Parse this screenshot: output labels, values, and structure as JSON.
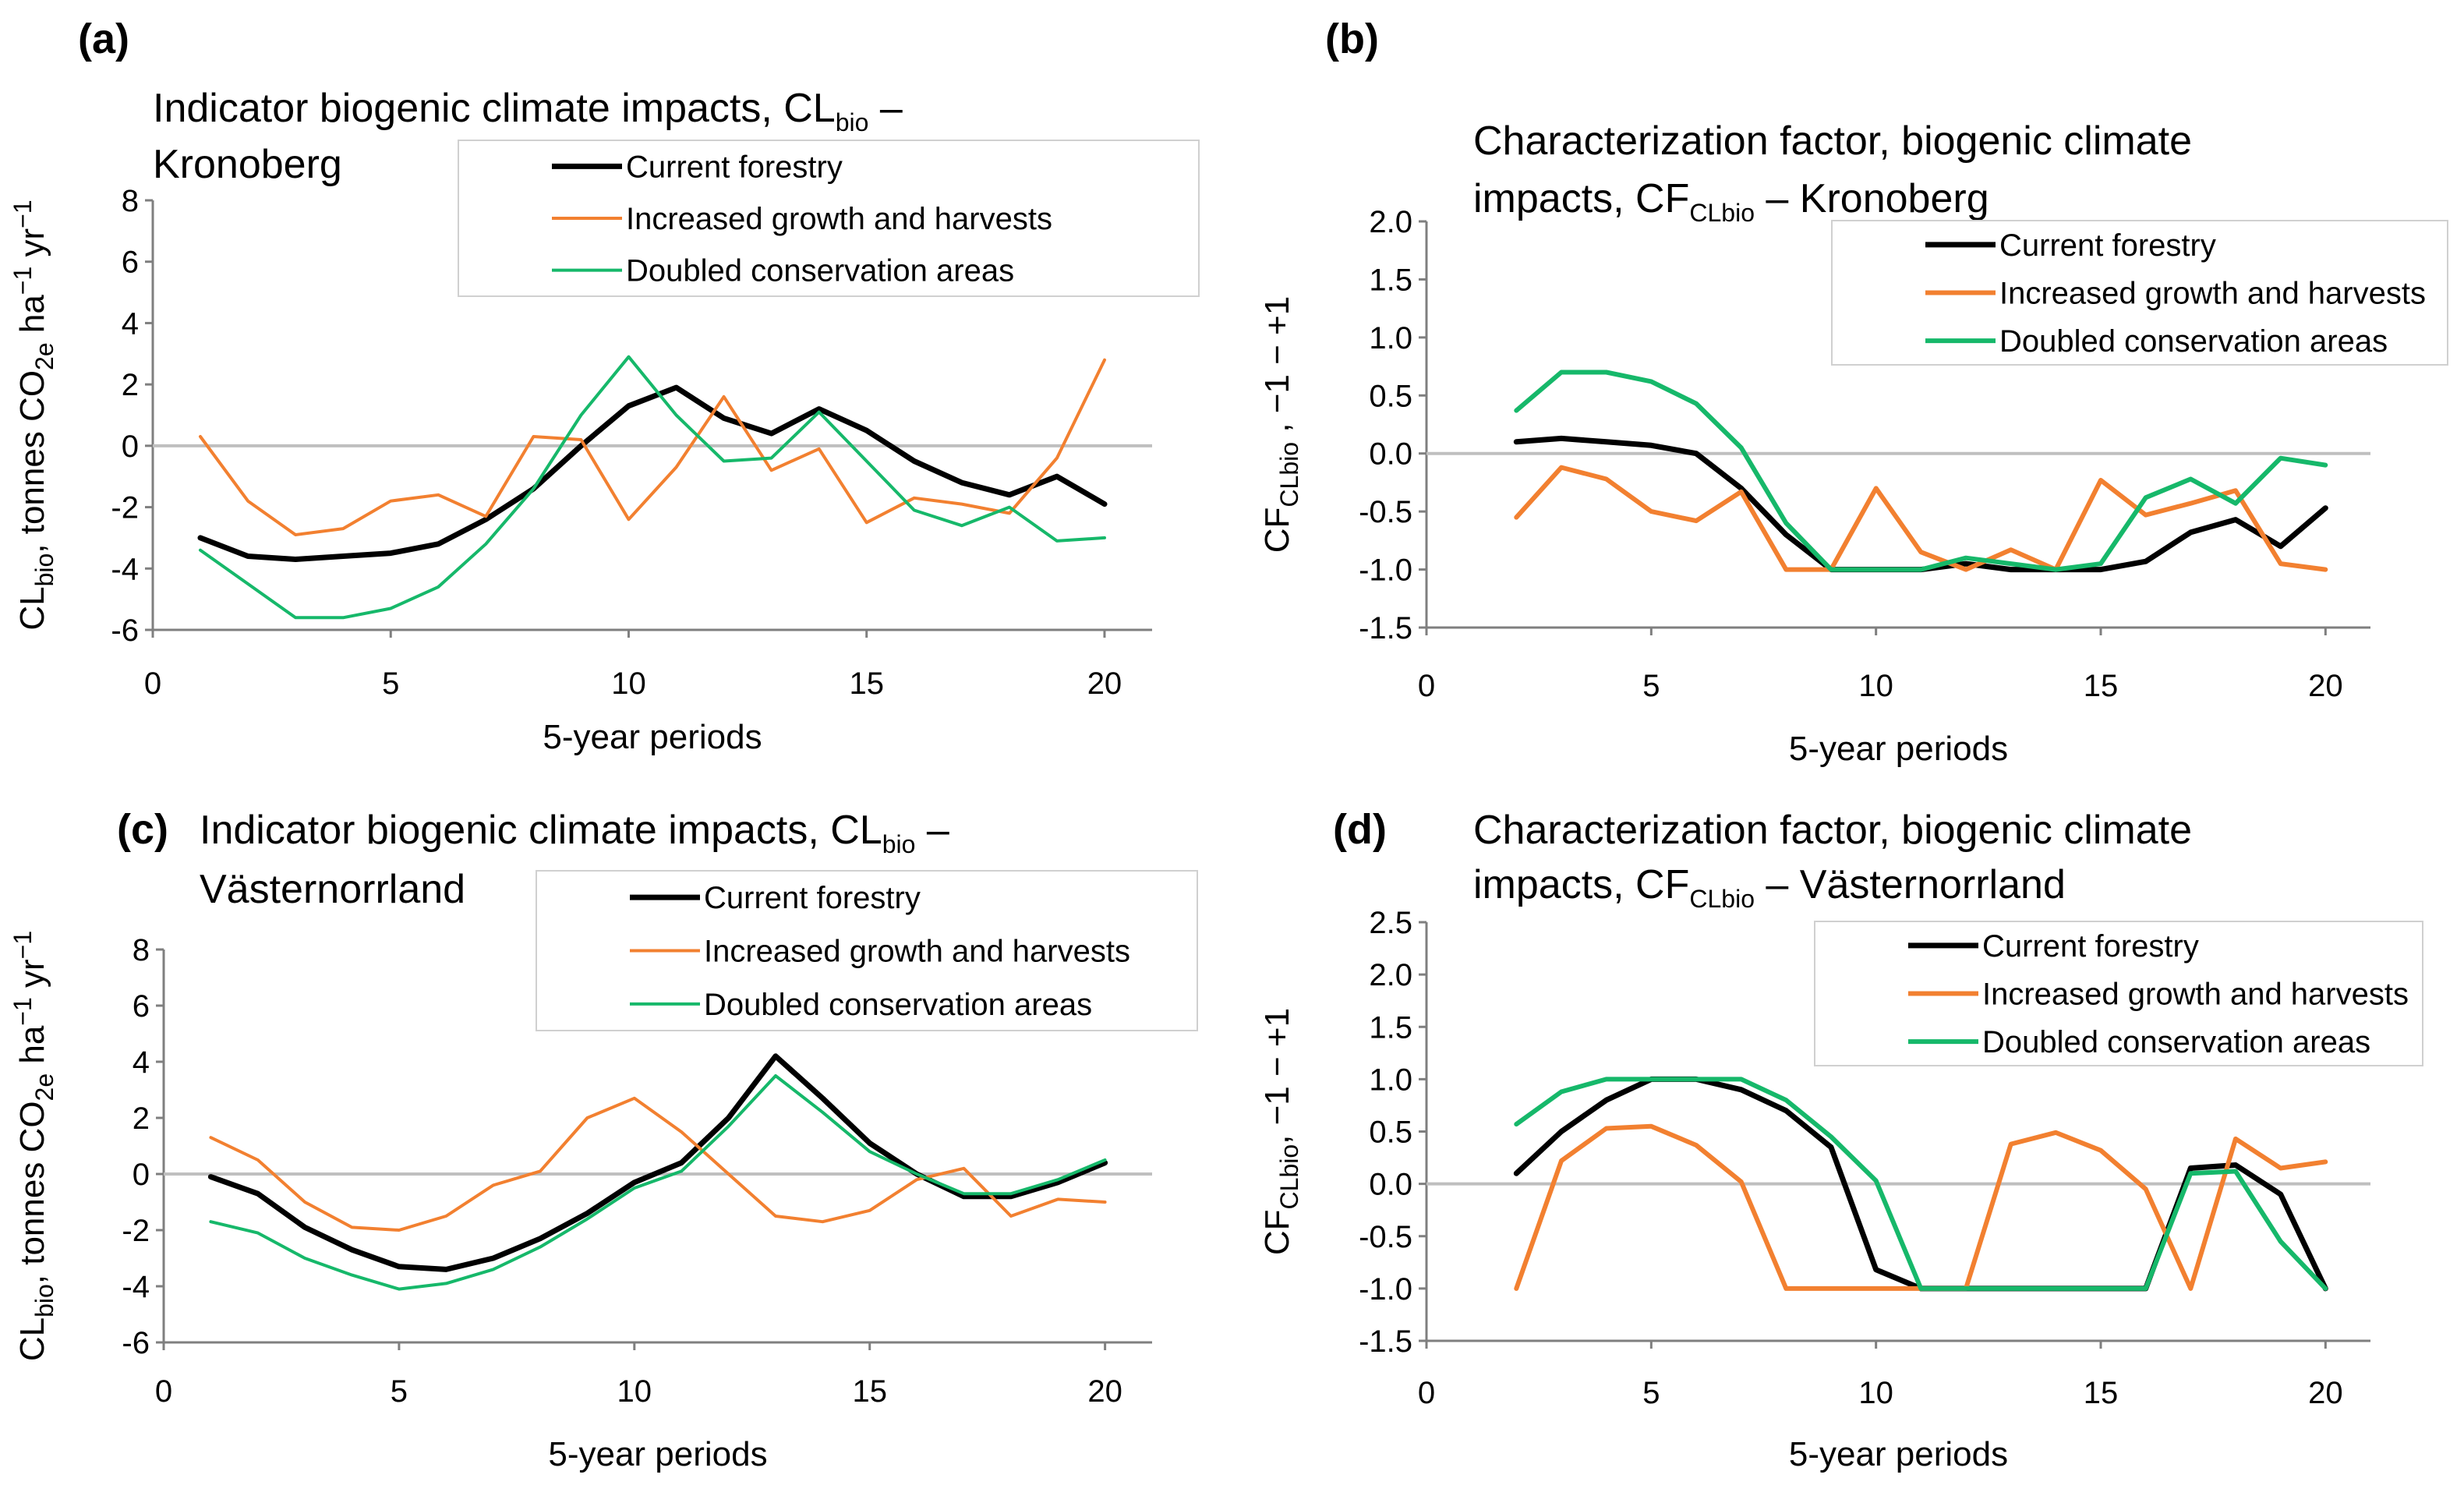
{
  "colors": {
    "current": "#000000",
    "increased": "#F28030",
    "doubled": "#16B86A",
    "zero_line": "#BFBFBF",
    "axis": "#7F7F7F",
    "legend_border": "#D0D0D0"
  },
  "panels": [
    {
      "id": "a",
      "label": "(a)",
      "title_line1": "Indicator biogenic climate impacts, CL",
      "title_line1_sub": "bio",
      "title_line1_end": " –",
      "title_line2": "Kronoberg",
      "ylabel_parts": [
        {
          "t": "CL"
        },
        {
          "t": "bio",
          "sub": true
        },
        {
          "t": ", tonnes CO"
        },
        {
          "t": "2e",
          "sub": true
        },
        {
          "t": " ha"
        },
        {
          "t": "−1",
          "sup": true
        },
        {
          "t": " yr"
        },
        {
          "t": "−1",
          "sup": true
        }
      ],
      "xlabel": "5-year periods",
      "xticks": [
        "0",
        "5",
        "10",
        "15",
        "20"
      ],
      "yticks": [
        "-6",
        "-4",
        "-2",
        "0",
        "2",
        "4",
        "6",
        "8"
      ],
      "legend": [
        "Current forestry",
        "Increased growth and harvests",
        "Doubled conservation areas"
      ]
    },
    {
      "id": "b",
      "label": "(b)",
      "title_line1": "Characterization factor, biogenic climate",
      "title_line2": "impacts, CF",
      "title_line2_sub": "CLbio",
      "title_line2_end": " – Kronoberg",
      "ylabel_parts": [
        {
          "t": "CF"
        },
        {
          "t": "CLbio",
          "sub": true
        },
        {
          "t": " ,  −1 − +1"
        }
      ],
      "xlabel": "5-year periods",
      "xticks": [
        "0",
        "5",
        "10",
        "15",
        "20"
      ],
      "yticks": [
        "-1.5",
        "-1.0",
        "-0.5",
        "0.0",
        "0.5",
        "1.0",
        "1.5",
        "2.0"
      ],
      "legend": [
        "Current forestry",
        "Increased growth and harvests",
        "Doubled conservation areas"
      ]
    },
    {
      "id": "c",
      "label": "(c)",
      "title_line1": "Indicator biogenic climate impacts, CL",
      "title_line1_sub": "bio",
      "title_line1_end": " –",
      "title_line2": "Västernorrland",
      "ylabel_parts": [
        {
          "t": "CL"
        },
        {
          "t": "bio",
          "sub": true
        },
        {
          "t": ", tonnes CO"
        },
        {
          "t": "2e",
          "sub": true
        },
        {
          "t": " ha"
        },
        {
          "t": "−1",
          "sup": true
        },
        {
          "t": " yr"
        },
        {
          "t": "−1",
          "sup": true
        }
      ],
      "xlabel": "5-year periods",
      "xticks": [
        "0",
        "5",
        "10",
        "15",
        "20"
      ],
      "yticks": [
        "-6",
        "-4",
        "-2",
        "0",
        "2",
        "4",
        "6",
        "8"
      ],
      "legend": [
        "Current forestry",
        "Increased growth and harvests",
        "Doubled conservation areas"
      ]
    },
    {
      "id": "d",
      "label": "(d)",
      "title_line1": "Characterization factor, biogenic climate",
      "title_line2": "impacts, CF",
      "title_line2_sub": "CLbio",
      "title_line2_end": " – Västernorrland",
      "ylabel_parts": [
        {
          "t": "CF"
        },
        {
          "t": "CLbio",
          "sub": true
        },
        {
          "t": ",  −1 − +1"
        }
      ],
      "xlabel": "5-year periods",
      "xticks": [
        "0",
        "5",
        "10",
        "15",
        "20"
      ],
      "yticks": [
        "-1.5",
        "-1.0",
        "-0.5",
        "0.0",
        "0.5",
        "1.0",
        "1.5",
        "2.0",
        "2.5"
      ],
      "legend": [
        "Current forestry",
        "Increased growth and harvests",
        "Doubled conservation areas"
      ]
    }
  ],
  "chart_data": [
    {
      "panel": "a",
      "type": "line",
      "title": "Indicator biogenic climate impacts, CLbio – Kronoberg",
      "xlabel": "5-year periods",
      "ylabel": "CLbio, tonnes CO2e ha−1 yr−1",
      "xlim": [
        0,
        21
      ],
      "ylim": [
        -6,
        8
      ],
      "grid": false,
      "legend_position": "top-right",
      "x": [
        1,
        2,
        3,
        4,
        5,
        6,
        7,
        8,
        9,
        10,
        11,
        12,
        13,
        14,
        15,
        16,
        17,
        18,
        19,
        20
      ],
      "series": [
        {
          "name": "Current forestry",
          "key": "current",
          "values": [
            -3.0,
            -3.6,
            -3.7,
            -3.6,
            -3.5,
            -3.2,
            -2.4,
            -1.4,
            0.0,
            1.3,
            1.9,
            0.9,
            0.4,
            1.2,
            0.5,
            -0.5,
            -1.2,
            -1.6,
            -1.0,
            -1.9
          ]
        },
        {
          "name": "Increased growth and harvests",
          "key": "increased",
          "values": [
            0.3,
            -1.8,
            -2.9,
            -2.7,
            -1.8,
            -1.6,
            -2.3,
            0.3,
            0.2,
            -2.4,
            -0.7,
            1.6,
            -0.8,
            -0.1,
            -2.5,
            -1.7,
            -1.9,
            -2.2,
            -0.4,
            2.8
          ]
        },
        {
          "name": "Doubled conservation areas",
          "key": "doubled",
          "values": [
            -3.4,
            -4.5,
            -5.6,
            -5.6,
            -5.3,
            -4.6,
            -3.2,
            -1.4,
            1.0,
            2.9,
            1.0,
            -0.5,
            -0.4,
            1.1,
            -0.5,
            -2.1,
            -2.6,
            -2.0,
            -3.1,
            -3.0
          ]
        }
      ]
    },
    {
      "panel": "b",
      "type": "line",
      "title": "Characterization factor, biogenic climate impacts, CFCLbio – Kronoberg",
      "xlabel": "5-year periods",
      "ylabel": "CFCLbio , −1 − +1",
      "xlim": [
        0,
        21
      ],
      "ylim": [
        -1.5,
        2.0
      ],
      "grid": false,
      "legend_position": "top-right",
      "x": [
        2,
        3,
        4,
        5,
        6,
        7,
        8,
        9,
        10,
        11,
        12,
        13,
        14,
        15,
        16,
        17,
        18,
        19,
        20
      ],
      "series": [
        {
          "name": "Current forestry",
          "key": "current",
          "values": [
            0.1,
            0.13,
            0.1,
            0.07,
            0.0,
            -0.3,
            -0.7,
            -1.0,
            -1.0,
            -1.0,
            -0.95,
            -1.0,
            -1.0,
            -1.0,
            -0.93,
            -0.68,
            -0.57,
            -0.8,
            -0.47
          ]
        },
        {
          "name": "Increased growth and harvests",
          "key": "increased",
          "values": [
            -0.55,
            -0.12,
            -0.22,
            -0.5,
            -0.58,
            -0.33,
            -1.0,
            -1.0,
            -0.3,
            -0.85,
            -1.0,
            -0.83,
            -1.0,
            -0.23,
            -0.53,
            -0.43,
            -0.32,
            -0.95,
            -1.0
          ]
        },
        {
          "name": "Doubled conservation areas",
          "key": "doubled",
          "values": [
            0.37,
            0.7,
            0.7,
            0.62,
            0.43,
            0.05,
            -0.6,
            -1.0,
            -1.0,
            -1.0,
            -0.9,
            -0.95,
            -1.0,
            -0.95,
            -0.38,
            -0.22,
            -0.43,
            -0.04,
            -0.1
          ]
        }
      ]
    },
    {
      "panel": "c",
      "type": "line",
      "title": "Indicator biogenic climate impacts, CLbio – Västernorrland",
      "xlabel": "5-year periods",
      "ylabel": "CLbio, tonnes CO2e ha−1 yr−1",
      "xlim": [
        0,
        21
      ],
      "ylim": [
        -6,
        8
      ],
      "grid": false,
      "legend_position": "top-right",
      "x": [
        1,
        2,
        3,
        4,
        5,
        6,
        7,
        8,
        9,
        10,
        11,
        12,
        13,
        14,
        15,
        16,
        17,
        18,
        19,
        20
      ],
      "series": [
        {
          "name": "Current forestry",
          "key": "current",
          "values": [
            -0.1,
            -0.7,
            -1.9,
            -2.7,
            -3.3,
            -3.4,
            -3.0,
            -2.3,
            -1.4,
            -0.3,
            0.4,
            2.0,
            4.2,
            2.7,
            1.1,
            0.0,
            -0.8,
            -0.8,
            -0.3,
            0.4
          ]
        },
        {
          "name": "Increased growth and harvests",
          "key": "increased",
          "values": [
            1.3,
            0.5,
            -1.0,
            -1.9,
            -2.0,
            -1.5,
            -0.4,
            0.1,
            2.0,
            2.7,
            1.5,
            0.0,
            -1.5,
            -1.7,
            -1.3,
            -0.2,
            0.2,
            -1.5,
            -0.9,
            -1.0
          ]
        },
        {
          "name": "Doubled conservation areas",
          "key": "doubled",
          "values": [
            -1.7,
            -2.1,
            -3.0,
            -3.6,
            -4.1,
            -3.9,
            -3.4,
            -2.6,
            -1.6,
            -0.5,
            0.1,
            1.7,
            3.5,
            2.2,
            0.8,
            0.0,
            -0.7,
            -0.7,
            -0.2,
            0.5
          ]
        }
      ]
    },
    {
      "panel": "d",
      "type": "line",
      "title": "Characterization factor, biogenic climate impacts, CFCLbio – Västernorrland",
      "xlabel": "5-year periods",
      "ylabel": "CFCLbio, −1 − +1",
      "xlim": [
        0,
        21
      ],
      "ylim": [
        -1.5,
        2.5
      ],
      "grid": false,
      "legend_position": "top-right",
      "x": [
        2,
        3,
        4,
        5,
        6,
        7,
        8,
        9,
        10,
        11,
        12,
        13,
        14,
        15,
        16,
        17,
        18,
        19,
        20
      ],
      "series": [
        {
          "name": "Current forestry",
          "key": "current",
          "values": [
            0.1,
            0.5,
            0.8,
            1.0,
            1.0,
            0.9,
            0.7,
            0.35,
            -0.82,
            -1.0,
            -1.0,
            -1.0,
            -1.0,
            -1.0,
            -1.0,
            0.15,
            0.18,
            -0.1,
            -1.0
          ]
        },
        {
          "name": "Increased growth and harvests",
          "key": "increased",
          "values": [
            -1.0,
            0.22,
            0.53,
            0.55,
            0.37,
            0.02,
            -1.0,
            -1.0,
            -1.0,
            -1.0,
            -1.0,
            0.38,
            0.49,
            0.32,
            -0.05,
            -1.0,
            0.43,
            0.15,
            0.21
          ]
        },
        {
          "name": "Doubled conservation areas",
          "key": "doubled",
          "values": [
            0.57,
            0.88,
            1.0,
            1.0,
            1.0,
            1.0,
            0.8,
            0.45,
            0.03,
            -1.0,
            -1.0,
            -1.0,
            -1.0,
            -1.0,
            -1.0,
            0.1,
            0.12,
            -0.55,
            -1.0
          ]
        }
      ]
    }
  ]
}
